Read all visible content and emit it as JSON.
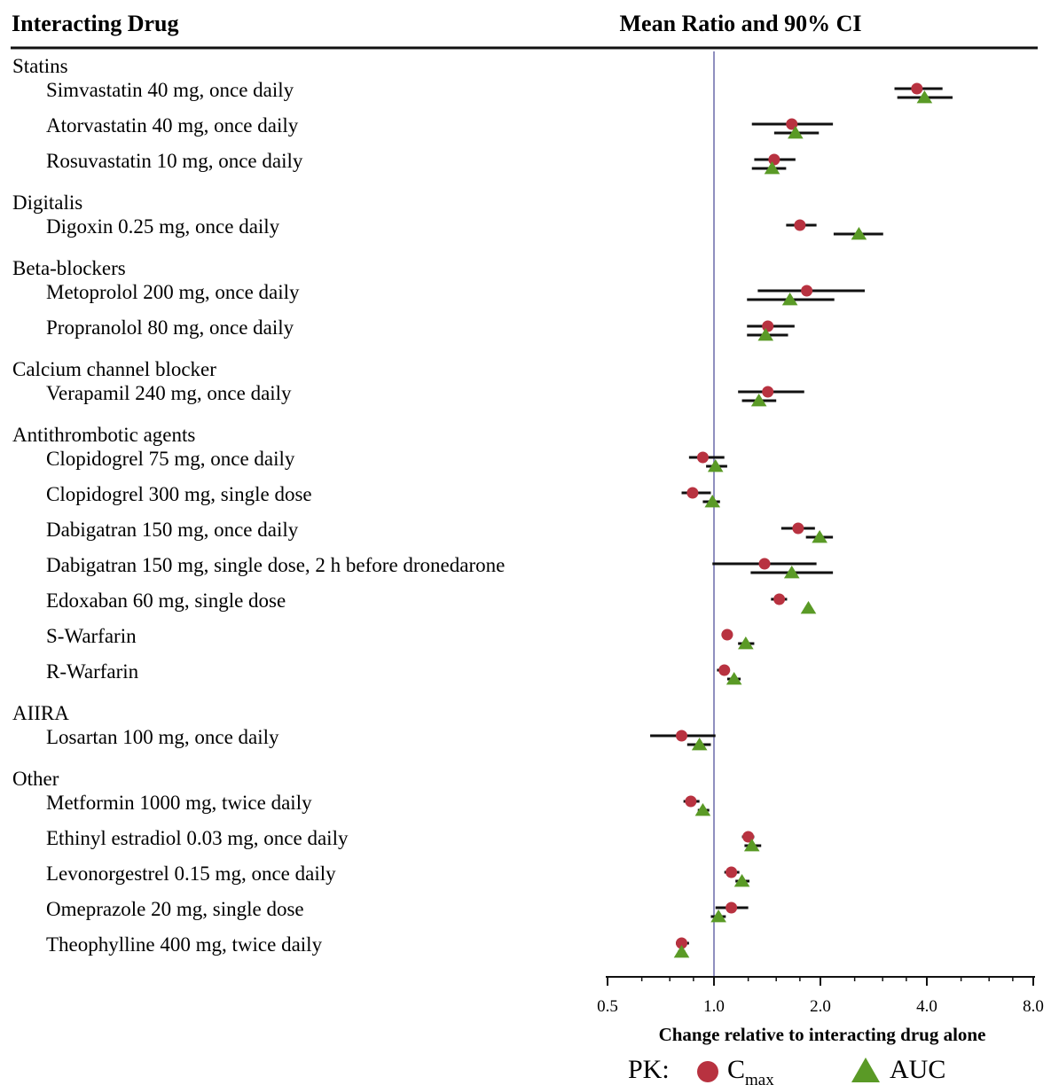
{
  "headers": {
    "left": "Interacting Drug",
    "right": "Mean Ratio and 90% CI"
  },
  "legend": {
    "prefix": "PK:",
    "cmax_main": "C",
    "cmax_sub": "max",
    "auc": "AUC"
  },
  "colors": {
    "cmax": "#b83240",
    "auc": "#5a9a26",
    "ci": "#111111",
    "refline": "#8f8fbf"
  },
  "chart_data": {
    "type": "forest",
    "xscale": "log2",
    "xlabel": "Change relative to interacting drug alone",
    "xlim": [
      0.5,
      8.0
    ],
    "xticks": [
      0.5,
      1.0,
      2.0,
      4.0,
      8.0
    ],
    "xtick_labels": [
      "0.5",
      "1.0",
      "2.0",
      "4.0",
      "8.0"
    ],
    "reference": 1.0,
    "groups": [
      {
        "name": "Statins",
        "rows": [
          {
            "label": "Simvastatin  40 mg, once daily",
            "cmax": [
              3.75,
              3.24,
              4.43
            ],
            "auc": [
              3.94,
              3.3,
              4.73
            ]
          },
          {
            "label": "Atorvastatin 40 mg, once daily",
            "cmax": [
              1.66,
              1.28,
              2.17
            ],
            "auc": [
              1.7,
              1.48,
              1.98
            ]
          },
          {
            "label": "Rosuvastatin 10 mg, once daily",
            "cmax": [
              1.48,
              1.3,
              1.7
            ],
            "auc": [
              1.46,
              1.28,
              1.6
            ]
          }
        ]
      },
      {
        "name": "Digitalis",
        "rows": [
          {
            "label": "Digoxin  0.25 mg, once daily",
            "cmax": [
              1.75,
              1.6,
              1.95
            ],
            "auc": [
              2.57,
              2.18,
              3.01
            ]
          }
        ]
      },
      {
        "name": "Beta-blockers",
        "rows": [
          {
            "label": "Metoprolol 200 mg, once daily",
            "cmax": [
              1.83,
              1.33,
              2.67
            ],
            "auc": [
              1.64,
              1.24,
              2.19
            ]
          },
          {
            "label": "Propranolol 80 mg, once daily",
            "cmax": [
              1.42,
              1.24,
              1.69
            ],
            "auc": [
              1.4,
              1.24,
              1.62
            ]
          }
        ]
      },
      {
        "name": "Calcium channel blocker",
        "rows": [
          {
            "label": "Verapamil  240 mg, once daily",
            "cmax": [
              1.42,
              1.17,
              1.8
            ],
            "auc": [
              1.34,
              1.2,
              1.5
            ]
          }
        ]
      },
      {
        "name": "Antithrombotic agents",
        "rows": [
          {
            "label": "Clopidogrel 75 mg, once daily",
            "cmax": [
              0.93,
              0.85,
              1.07
            ],
            "auc": [
              1.01,
              0.95,
              1.09
            ]
          },
          {
            "label": "Clopidogrel 300 mg, single  dose",
            "cmax": [
              0.87,
              0.81,
              0.98
            ],
            "auc": [
              0.99,
              0.93,
              1.04
            ]
          },
          {
            "label": "Dabigatran  150 mg, once daily",
            "cmax": [
              1.73,
              1.55,
              1.93
            ],
            "auc": [
              1.99,
              1.82,
              2.17
            ]
          },
          {
            "label": "Dabigatran  150 mg, single  dose, 2 h  before dronedarone",
            "cmax": [
              1.39,
              0.99,
              1.95
            ],
            "auc": [
              1.66,
              1.27,
              2.17
            ]
          },
          {
            "label": "Edoxaban 60 mg, single  dose",
            "cmax": [
              1.53,
              1.45,
              1.61
            ],
            "auc": [
              1.85,
              1.81,
              1.89
            ]
          },
          {
            "label": "S-Warfarin",
            "cmax": [
              1.09,
              1.05,
              1.13
            ],
            "auc": [
              1.23,
              1.17,
              1.3
            ]
          },
          {
            "label": "R-Warfarin",
            "cmax": [
              1.07,
              1.02,
              1.11
            ],
            "auc": [
              1.14,
              1.09,
              1.19
            ]
          }
        ]
      },
      {
        "name": "AIIRA",
        "rows": [
          {
            "label": "Losartan 100 mg, once daily",
            "cmax": [
              0.81,
              0.66,
              1.01
            ],
            "auc": [
              0.91,
              0.84,
              0.98
            ]
          }
        ]
      },
      {
        "name": "Other",
        "rows": [
          {
            "label": "Metformin  1000 mg, twice daily",
            "cmax": [
              0.86,
              0.82,
              0.91
            ],
            "auc": [
              0.93,
              0.9,
              0.97
            ]
          },
          {
            "label": "Ethinyl  estradiol 0.03 mg, once daily",
            "cmax": [
              1.25,
              1.2,
              1.3
            ],
            "auc": [
              1.28,
              1.22,
              1.36
            ]
          },
          {
            "label": "Levonorgestrel 0.15 mg, once daily",
            "cmax": [
              1.12,
              1.07,
              1.18
            ],
            "auc": [
              1.2,
              1.15,
              1.26
            ]
          },
          {
            "label": "Omeprazole 20 mg, single  dose",
            "cmax": [
              1.12,
              1.01,
              1.25
            ],
            "auc": [
              1.03,
              0.98,
              1.08
            ]
          },
          {
            "label": "Theophylline  400 mg, twice daily",
            "cmax": [
              0.81,
              0.78,
              0.85
            ],
            "auc": [
              0.81,
              0.79,
              0.83
            ]
          }
        ]
      }
    ]
  }
}
